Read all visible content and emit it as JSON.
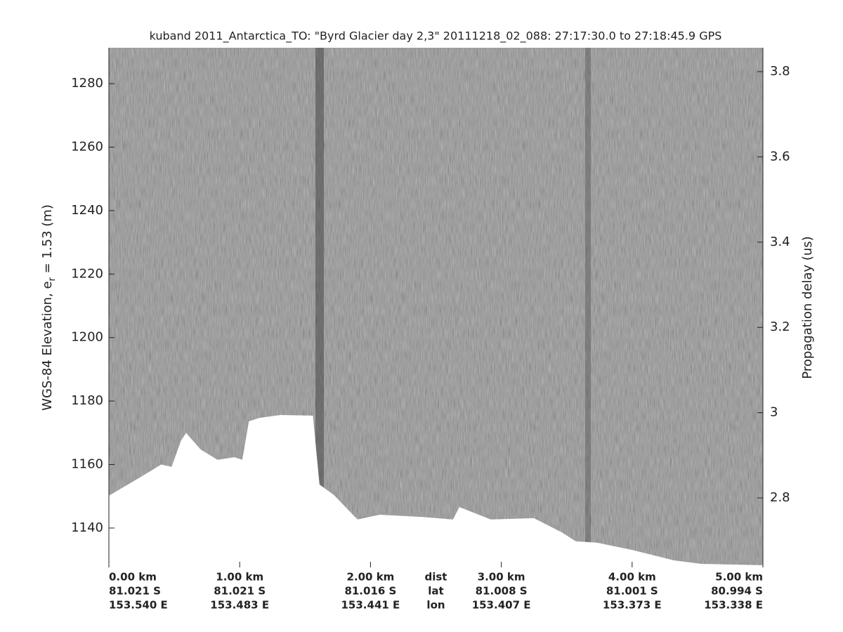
{
  "chart_data": {
    "type": "echogram",
    "title": "kuband 2011_Antarctica_TO: \"Byrd Glacier day 2,3\"  20111218_02_088: 27:17:30.0 to 27:18:45.9 GPS",
    "ylabel": [
      "WGS-84 Elevation, e",
      "r",
      " = 1.53 (m)"
    ],
    "y2label": "Propagation delay (us)",
    "ylim": [
      1127.6,
      1291.3
    ],
    "yticks": [
      1140,
      1160,
      1180,
      1200,
      1220,
      1240,
      1260,
      1280
    ],
    "y2lim": [
      2.637,
      3.856
    ],
    "y2ticks": [
      2.8,
      3,
      3.2,
      3.4,
      3.6,
      3.8
    ],
    "xlim": [
      0,
      5
    ],
    "xticks": [
      {
        "value": 0,
        "label": "0.00 km"
      },
      {
        "value": 1,
        "label": "1.00 km"
      },
      {
        "value": 2,
        "label": "2.00 km"
      },
      {
        "value": 3,
        "label": "3.00 km"
      },
      {
        "value": 4,
        "label": "4.00 km"
      },
      {
        "value": 5,
        "label": "5.00 km"
      }
    ],
    "lat_labels": [
      "81.021 S",
      "81.021 S",
      "81.016 S",
      "81.008 S",
      "81.001 S",
      "80.994 S"
    ],
    "lon_labels": [
      "153.540 E",
      "153.483 E",
      "153.441 E",
      "153.407 E",
      "153.373 E",
      "153.338 E"
    ],
    "row_names": [
      "dist",
      "lat",
      "lon"
    ],
    "surface": {
      "x": [
        0,
        0.24,
        0.4,
        0.48,
        0.55,
        0.59,
        0.7,
        0.83,
        0.96,
        1.02,
        1.07,
        1.15,
        1.31,
        1.56,
        1.61,
        1.72,
        1.9,
        2.07,
        2.39,
        2.63,
        2.68,
        2.92,
        3.25,
        3.46,
        3.57,
        3.73,
        4.0,
        4.32,
        4.53,
        5.0
      ],
      "values": [
        1150.2,
        1156,
        1160,
        1159.3,
        1167.4,
        1170,
        1164.8,
        1161.5,
        1162.3,
        1161.5,
        1173.6,
        1174.7,
        1175.6,
        1175.4,
        1153.7,
        1150.4,
        1142.7,
        1144.2,
        1143.5,
        1142.7,
        1146.6,
        1142.7,
        1143.1,
        1138.7,
        1135.8,
        1135.4,
        1133.1,
        1129.8,
        1128.7,
        1128.3
      ]
    }
  }
}
